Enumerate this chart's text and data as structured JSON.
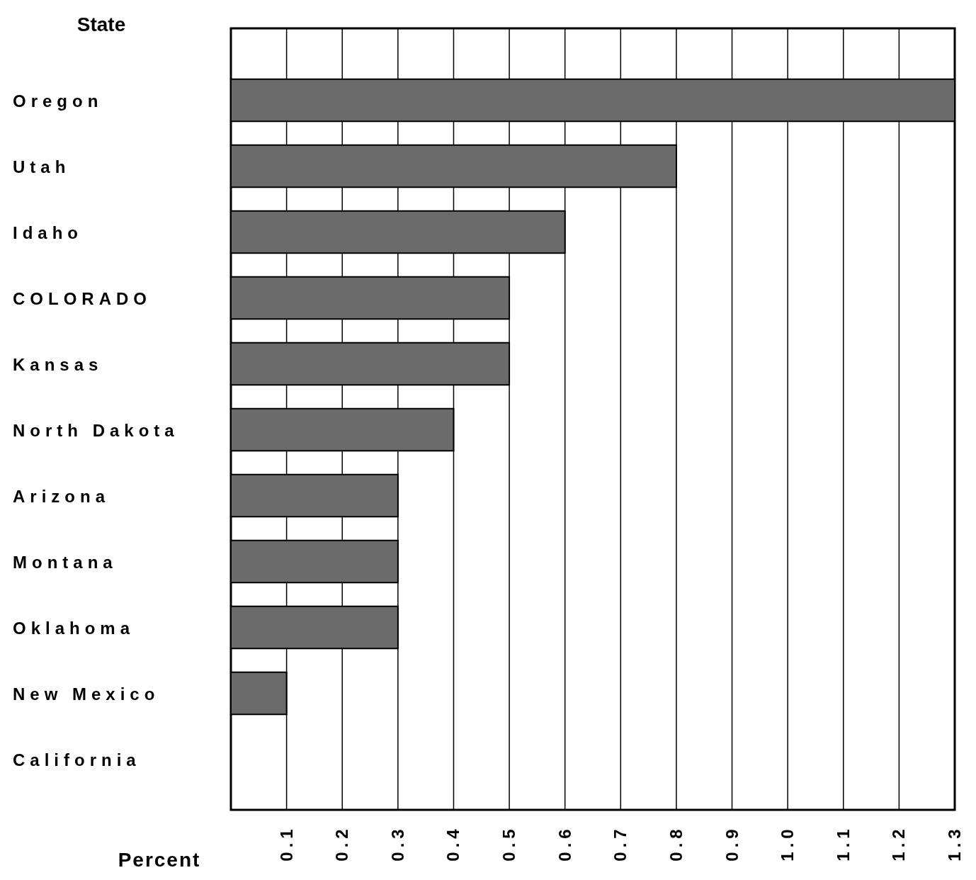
{
  "chart_data": {
    "type": "bar",
    "orientation": "horizontal",
    "ylabel": "State",
    "xlabel": "Percent",
    "categories": [
      "Oregon",
      "Utah",
      "Idaho",
      "COLORADO",
      "Kansas",
      "North Dakota",
      "Arizona",
      "Montana",
      "Oklahoma",
      "New Mexico",
      "California"
    ],
    "values": [
      1.3,
      0.8,
      0.6,
      0.5,
      0.5,
      0.4,
      0.3,
      0.3,
      0.3,
      0.1,
      0
    ],
    "color": "#6b6b6b",
    "xlim": [
      0,
      1.3
    ],
    "xticks": [
      0.1,
      0.2,
      0.3,
      0.4,
      0.5,
      0.6,
      0.7,
      0.8,
      0.9,
      {
        "value": 1,
        "label": "1.0"
      },
      1.1,
      1.2,
      1.3
    ],
    "grid": "x"
  }
}
